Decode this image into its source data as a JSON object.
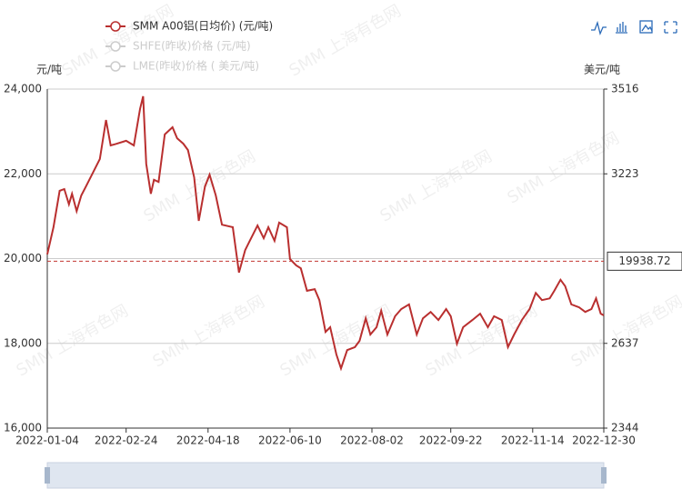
{
  "chart_data": {
    "type": "line",
    "y_axis_label": "元/吨",
    "y2_axis_label": "美元/吨",
    "watermark": "SMM 上海有色网",
    "x": [
      "2022-01-04",
      "2022-01-08",
      "2022-01-12",
      "2022-01-15",
      "2022-01-18",
      "2022-01-20",
      "2022-01-23",
      "2022-01-26",
      "2022-01-29",
      "2022-02-07",
      "2022-02-11",
      "2022-02-14",
      "2022-02-18",
      "2022-02-24",
      "2022-03-01",
      "2022-03-05",
      "2022-03-07",
      "2022-03-09",
      "2022-03-12",
      "2022-03-14",
      "2022-03-17",
      "2022-03-21",
      "2022-03-26",
      "2022-03-29",
      "2022-04-02",
      "2022-04-05",
      "2022-04-09",
      "2022-04-12",
      "2022-04-16",
      "2022-04-19",
      "2022-04-23",
      "2022-04-27",
      "2022-05-04",
      "2022-05-08",
      "2022-05-12",
      "2022-05-15",
      "2022-05-20",
      "2022-05-24",
      "2022-05-27",
      "2022-05-31",
      "2022-06-03",
      "2022-06-08",
      "2022-06-10",
      "2022-06-14",
      "2022-06-17",
      "2022-06-21",
      "2022-06-26",
      "2022-06-29",
      "2022-07-03",
      "2022-07-06",
      "2022-07-10",
      "2022-07-13",
      "2022-07-17",
      "2022-07-22",
      "2022-07-25",
      "2022-07-29",
      "2022-08-01",
      "2022-08-05",
      "2022-08-08",
      "2022-08-12",
      "2022-08-17",
      "2022-08-21",
      "2022-08-26",
      "2022-08-31",
      "2022-09-04",
      "2022-09-09",
      "2022-09-14",
      "2022-09-19",
      "2022-09-22",
      "2022-09-26",
      "2022-09-30",
      "2022-10-06",
      "2022-10-11",
      "2022-10-16",
      "2022-10-20",
      "2022-10-25",
      "2022-10-29",
      "2022-11-02",
      "2022-11-07",
      "2022-11-12",
      "2022-11-16",
      "2022-11-20",
      "2022-11-25",
      "2022-11-28",
      "2022-12-02",
      "2022-12-05",
      "2022-12-09",
      "2022-12-14",
      "2022-12-18",
      "2022-12-22",
      "2022-12-25",
      "2022-12-28",
      "2022-12-30"
    ],
    "series": [
      {
        "name": "SMM A00铝(日均价)  (元/吨)",
        "color": "#b92f2f",
        "visible": true,
        "values": [
          20100,
          20740,
          21600,
          21640,
          21280,
          21530,
          21120,
          21490,
          21700,
          22350,
          23270,
          22670,
          22710,
          22780,
          22670,
          23530,
          23830,
          22240,
          21530,
          21860,
          21810,
          22930,
          23100,
          22840,
          22710,
          22560,
          21920,
          20890,
          21700,
          21980,
          21490,
          20800,
          20740,
          19670,
          20200,
          20420,
          20780,
          20480,
          20740,
          20420,
          20850,
          20740,
          19990,
          19840,
          19770,
          19240,
          19280,
          19020,
          18270,
          18380,
          17740,
          17410,
          17840,
          17910,
          18060,
          18590,
          18210,
          18380,
          18770,
          18210,
          18640,
          18810,
          18920,
          18210,
          18590,
          18740,
          18550,
          18810,
          18640,
          17990,
          18380,
          18550,
          18700,
          18380,
          18640,
          18550,
          17910,
          18210,
          18550,
          18810,
          19190,
          19020,
          19060,
          19240,
          19500,
          19350,
          18920,
          18850,
          18740,
          18810,
          19060,
          18700,
          18660
        ]
      },
      {
        "name": "SHFE(昨收)价格  (元/吨)",
        "color": "#cccccc",
        "visible": false
      },
      {
        "name": "LME(昨收)价格  ( 美元/吨)",
        "color": "#cccccc",
        "visible": false
      }
    ],
    "xlim": [
      "2022-01-04",
      "2022-12-30"
    ],
    "xticks": [
      "2022-01-04",
      "2022-02-24",
      "2022-04-18",
      "2022-06-10",
      "2022-08-02",
      "2022-09-22",
      "2022-11-14",
      "2022-12-30"
    ],
    "ylim": [
      16000,
      24000
    ],
    "yticks": [
      {
        "value": 16000,
        "label": "16,000"
      },
      {
        "value": 18000,
        "label": "18,000"
      },
      {
        "value": 20000,
        "label": "20,000"
      },
      {
        "value": 22000,
        "label": "22,000"
      },
      {
        "value": 24000,
        "label": "24,000"
      }
    ],
    "y2lim": [
      2344,
      3516
    ],
    "y2ticks": [
      2344,
      2637,
      3223,
      3516
    ],
    "ref_line": 19938.72,
    "grid": true
  }
}
